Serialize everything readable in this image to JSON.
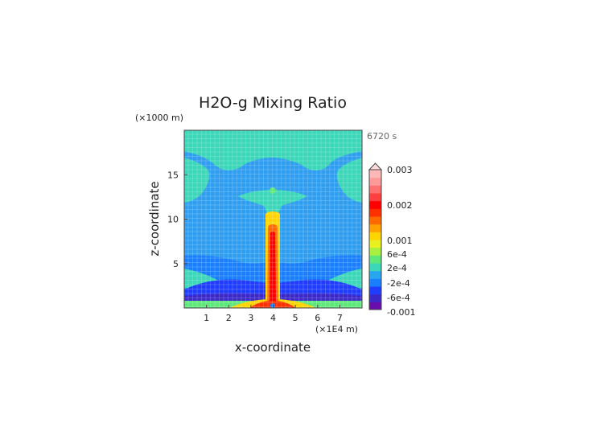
{
  "chart_data": {
    "type": "heatmap",
    "title": "H2O-g Mixing Ratio",
    "xlabel": "x-coordinate",
    "ylabel": "z-coordinate",
    "x_unit": "(×1E4 m)",
    "y_unit": "(×1000 m)",
    "time_label": "6720 s",
    "xlim": [
      0,
      8
    ],
    "ylim": [
      0,
      20
    ],
    "x_ticks": [
      1,
      2,
      3,
      4,
      5,
      6,
      7
    ],
    "y_ticks": [
      5,
      10,
      15
    ],
    "colorbar": {
      "labels": [
        "0.003",
        "0.002",
        "0.001",
        "6e-4",
        "2e-4",
        "-2e-4",
        "-6e-4",
        "-0.001"
      ],
      "colors": [
        "#6a0dad",
        "#3a28c8",
        "#1f3cff",
        "#1a7fff",
        "#2aa6f0",
        "#3cd6b8",
        "#5fe87a",
        "#a8f040",
        "#e8f020",
        "#ffd400",
        "#ffa200",
        "#ff6a00",
        "#ff3000",
        "#ff0000",
        "#ff4040",
        "#ff7070",
        "#ff9a9a",
        "#ffb8b8"
      ]
    }
  }
}
